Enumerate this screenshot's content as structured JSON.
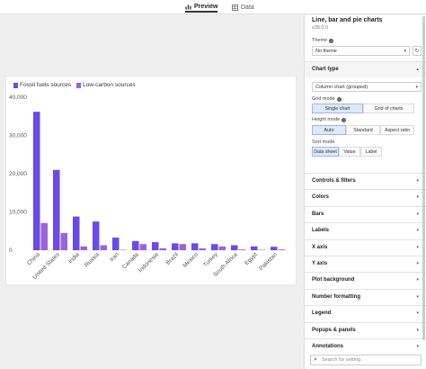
{
  "tabs": [
    {
      "label": "Preview",
      "active": true
    },
    {
      "label": "Data",
      "active": false
    }
  ],
  "panel": {
    "title": "Line, bar and pie charts",
    "version": "v39.0.0",
    "theme_label": "Theme",
    "theme_value": "No theme",
    "chart_type_label": "Chart type",
    "chart_type_value": "Column chart (grouped)",
    "grid_mode_label": "Grid mode",
    "grid_mode_options": [
      "Single chart",
      "Grid of charts"
    ],
    "height_mode_label": "Height mode",
    "height_mode_options": [
      "Auto",
      "Standard",
      "Aspect ratio"
    ],
    "sort_mode_label": "Sort mode",
    "sort_mode_options": [
      "Data sheet",
      "Value",
      "Label"
    ],
    "sections": [
      "Controls & filters",
      "Colors",
      "Bars",
      "Labels",
      "X axis",
      "Y axis",
      "Plot background",
      "Number formatting",
      "Legend",
      "Popups & panels",
      "Annotations"
    ],
    "search_placeholder": "Search for setting"
  },
  "colors": {
    "fossil": "#6a4be8",
    "lowcarbon": "#9b63db",
    "accent": "#4a7bd4"
  },
  "chart_data": {
    "type": "bar",
    "categories": [
      "China",
      "United States",
      "India",
      "Russia",
      "Iran",
      "Canada",
      "Indonesia",
      "Brazil",
      "Mexico",
      "Turkey",
      "South Africa",
      "Egypt",
      "Pakistan"
    ],
    "series": [
      {
        "name": "Fossil fuels sources",
        "values": [
          36200,
          21000,
          8800,
          7500,
          3300,
          2400,
          2100,
          1800,
          1800,
          1600,
          1300,
          1000,
          900
        ]
      },
      {
        "name": "Low-carbon sources",
        "values": [
          7100,
          4500,
          1000,
          1300,
          100,
          1600,
          500,
          1600,
          500,
          1000,
          200,
          100,
          200
        ]
      }
    ],
    "y_ticks": [
      "0",
      "10,000",
      "20,000",
      "30,000",
      "40,000"
    ],
    "ylim": [
      0,
      40000
    ],
    "grid": false,
    "legend": "top-left"
  }
}
